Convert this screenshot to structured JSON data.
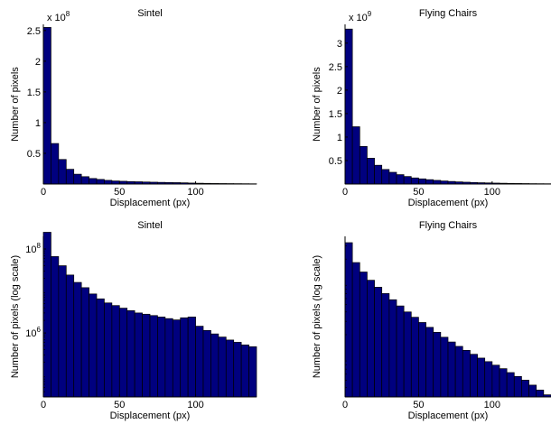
{
  "chart_data": [
    {
      "type": "bar",
      "title": "Sintel",
      "xlabel": "Displacement (px)",
      "ylabel": "Number of pixels",
      "yscale": "linear",
      "y_multiplier": "x 10",
      "y_multiplier_exp": "8",
      "xlim": [
        0,
        140
      ],
      "ylim": [
        0,
        2.6
      ],
      "xticks": [
        {
          "v": 0,
          "label": "0"
        },
        {
          "v": 50,
          "label": "50"
        },
        {
          "v": 100,
          "label": "100"
        }
      ],
      "yticks": [
        {
          "v": 0.5,
          "label": "0.5"
        },
        {
          "v": 1,
          "label": "1"
        },
        {
          "v": 1.5,
          "label": "1.5"
        },
        {
          "v": 2,
          "label": "2"
        },
        {
          "v": 2.5,
          "label": "2.5"
        }
      ],
      "bin_width": 5,
      "bin_start": 0,
      "values": [
        2.55,
        0.66,
        0.4,
        0.24,
        0.16,
        0.12,
        0.09,
        0.075,
        0.06,
        0.05,
        0.045,
        0.04,
        0.037,
        0.033,
        0.03,
        0.027,
        0.025,
        0.023,
        0.02,
        0.016,
        0.013,
        0.011,
        0.009,
        0.008,
        0.007,
        0.006,
        0.005,
        0.004
      ],
      "bar_color": "#00007f",
      "grid": false
    },
    {
      "type": "bar",
      "title": "Flying Chairs",
      "xlabel": "Displacement (px)",
      "ylabel": "Number of pixels",
      "yscale": "linear",
      "y_multiplier": "x 10",
      "y_multiplier_exp": "9",
      "xlim": [
        0,
        140
      ],
      "ylim": [
        0,
        3.4
      ],
      "xticks": [
        {
          "v": 0,
          "label": "0"
        },
        {
          "v": 50,
          "label": "50"
        },
        {
          "v": 100,
          "label": "100"
        }
      ],
      "yticks": [
        {
          "v": 0.5,
          "label": "0.5"
        },
        {
          "v": 1,
          "label": "1"
        },
        {
          "v": 1.5,
          "label": "1.5"
        },
        {
          "v": 2,
          "label": "2"
        },
        {
          "v": 2.5,
          "label": "2.5"
        },
        {
          "v": 3,
          "label": "3"
        }
      ],
      "bin_width": 5,
      "bin_start": 0,
      "values": [
        3.3,
        1.22,
        0.8,
        0.55,
        0.4,
        0.31,
        0.25,
        0.2,
        0.16,
        0.13,
        0.11,
        0.093,
        0.078,
        0.065,
        0.055,
        0.046,
        0.039,
        0.033,
        0.028,
        0.024,
        0.02,
        0.017,
        0.014,
        0.012,
        0.01,
        0.008,
        0.007,
        0.006
      ],
      "bar_color": "#00007f",
      "grid": false
    },
    {
      "type": "bar",
      "title": "Sintel",
      "xlabel": "Displacement (px)",
      "ylabel": "Number of pixels (log scale)",
      "yscale": "log",
      "xlim": [
        0,
        140
      ],
      "ylim": [
        30000,
        200000000
      ],
      "xticks": [
        {
          "v": 0,
          "label": "0"
        },
        {
          "v": 50,
          "label": "50"
        },
        {
          "v": 100,
          "label": "100"
        }
      ],
      "yticks": [
        {
          "v": 1000000,
          "base": "10",
          "exp": "6"
        },
        {
          "v": 100000000,
          "base": "10",
          "exp": "8"
        }
      ],
      "bin_width": 5,
      "bin_start": 0,
      "values": [
        250000000,
        66000000,
        40000000,
        24000000,
        16000000,
        12000000,
        8500000,
        6500000,
        5200000,
        4500000,
        3900000,
        3400000,
        3000000,
        2800000,
        2600000,
        2400000,
        2200000,
        2050000,
        2300000,
        2400000,
        1450000,
        1150000,
        950000,
        800000,
        680000,
        600000,
        520000,
        470000
      ],
      "bar_color": "#00007f",
      "grid": false
    },
    {
      "type": "bar",
      "title": "Flying Chairs",
      "xlabel": "Displacement (px)",
      "ylabel": "Number of pixels (log scale)",
      "yscale": "log",
      "xlim": [
        0,
        140
      ],
      "ylim": [
        30000000,
        4000000000
      ],
      "xticks": [
        {
          "v": 0,
          "label": "0"
        },
        {
          "v": 50,
          "label": "50"
        },
        {
          "v": 100,
          "label": "100"
        }
      ],
      "yticks": [],
      "bin_width": 5,
      "bin_start": 0,
      "values": [
        3300000000,
        1800000000,
        1350000000,
        1050000000,
        850000000,
        700000000,
        580000000,
        480000000,
        400000000,
        340000000,
        290000000,
        250000000,
        215000000,
        185000000,
        160000000,
        140000000,
        124000000,
        110000000,
        98000000,
        88000000,
        79000000,
        71000000,
        63000000,
        56000000,
        50000000,
        43000000,
        37000000,
        32000000
      ],
      "bar_color": "#00007f",
      "grid": false
    }
  ]
}
